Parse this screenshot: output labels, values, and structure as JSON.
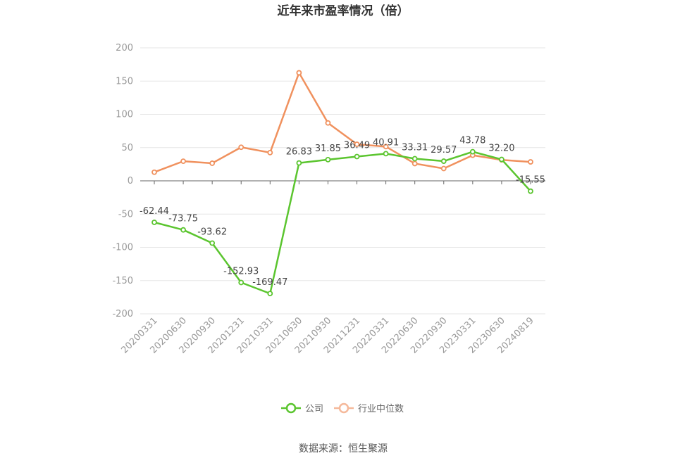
{
  "chart_data": {
    "type": "line",
    "title": "近年来市盈率情况（倍）",
    "categories": [
      "20200331",
      "20200630",
      "20200930",
      "20201231",
      "20210331",
      "20210630",
      "20210930",
      "20211231",
      "20220331",
      "20220630",
      "20220930",
      "20230331",
      "20230630",
      "20240819"
    ],
    "series": [
      {
        "name": "公司",
        "color": "#5bc52f",
        "values": [
          -62.44,
          -73.75,
          -93.62,
          -152.93,
          -169.47,
          26.83,
          31.85,
          36.49,
          40.91,
          33.31,
          29.57,
          43.78,
          32.2,
          -15.55
        ],
        "labels": [
          "-62.44",
          "-73.75",
          "-93.62",
          "-152.93",
          "-169.47",
          "26.83",
          "31.85",
          "36.49",
          "40.91",
          "33.31",
          "29.57",
          "43.78",
          "32.20",
          "-15.55"
        ]
      },
      {
        "name": "行业中位数",
        "color": "#f0915e",
        "values": [
          13,
          29.5,
          26.5,
          50.5,
          42.5,
          162.5,
          87,
          55,
          51.5,
          26,
          18.5,
          38.5,
          31.5,
          28.5
        ]
      }
    ],
    "yticks": [
      200,
      150,
      100,
      50,
      0,
      -50,
      -100,
      -150,
      -200
    ],
    "ylim": [
      -200,
      200
    ],
    "grid": true,
    "legend": "bottom-center"
  },
  "source": "数据来源：恒生聚源"
}
